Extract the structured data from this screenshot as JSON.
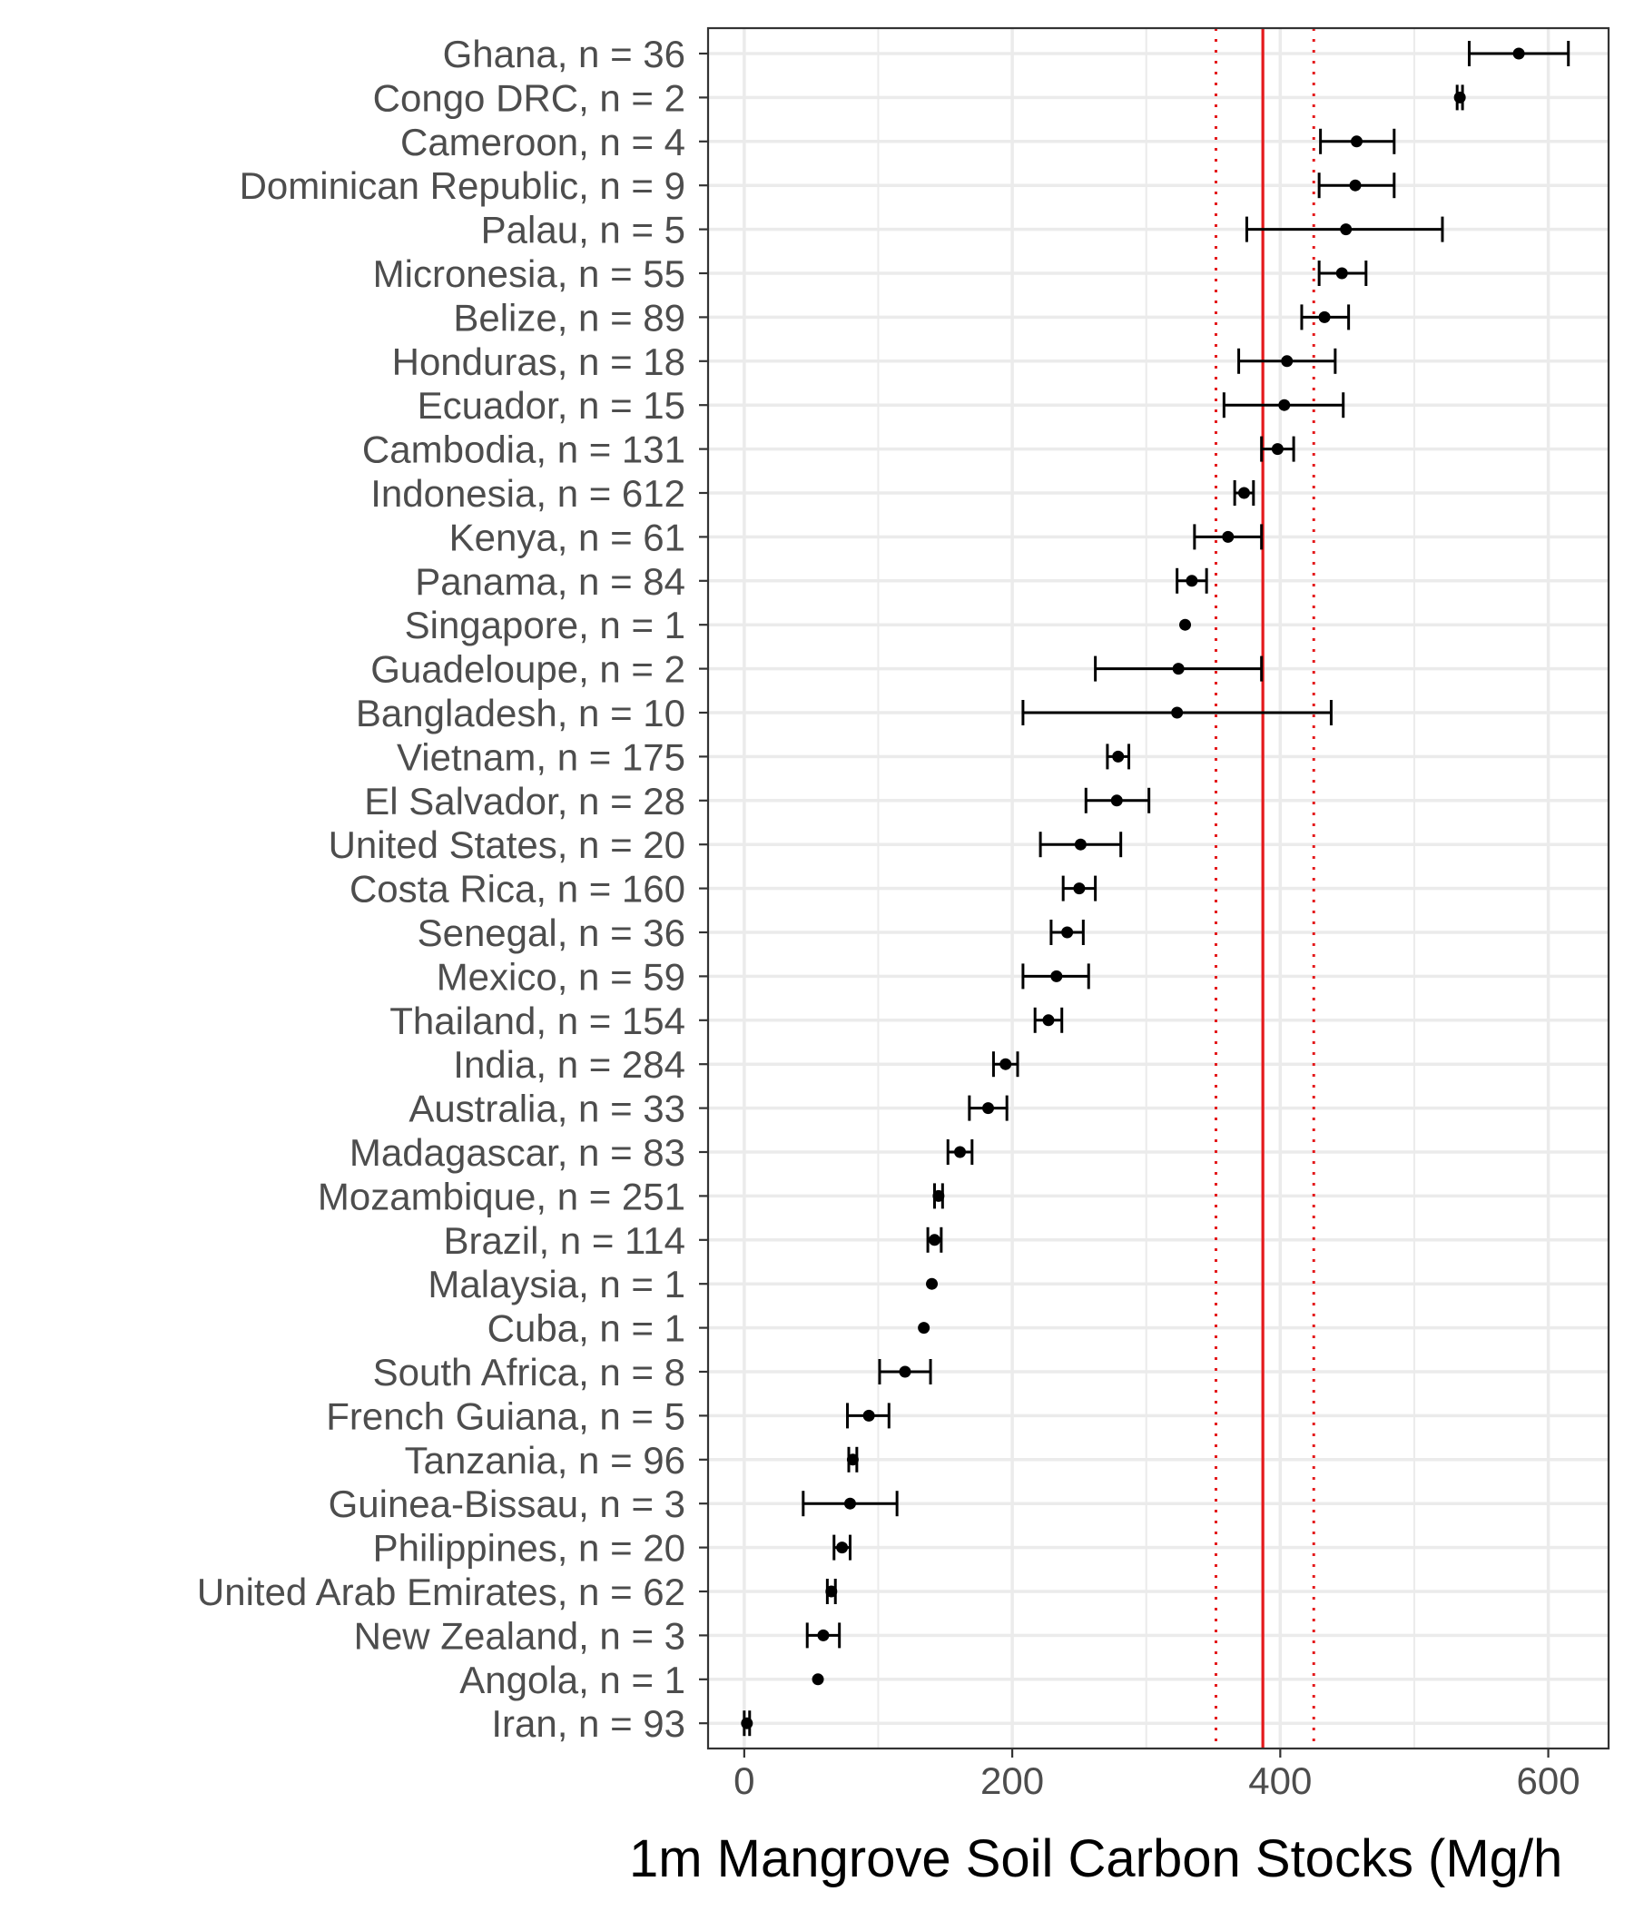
{
  "chart_data": {
    "type": "dot-errorbar",
    "xlabel": "1m Mangrove Soil Carbon Stocks (Mg/h",
    "ylabel": "",
    "xlim": [
      -27,
      645
    ],
    "xticks": [
      0,
      200,
      400,
      600
    ],
    "grid": true,
    "reference_lines": {
      "global_mean": 387,
      "ci_lower": 352,
      "ci_upper": 425,
      "color": "#e41a1c"
    },
    "series": [
      {
        "categories": [
          "Ghana, n = 36",
          "Congo DRC, n = 2",
          "Cameroon, n = 4",
          "Dominican Republic, n = 9",
          "Palau, n = 5",
          "Micronesia, n = 55",
          "Belize, n = 89",
          "Honduras, n = 18",
          "Ecuador, n = 15",
          "Cambodia, n = 131",
          "Indonesia, n = 612",
          "Kenya, n = 61",
          "Panama, n = 84",
          "Singapore, n = 1",
          "Guadeloupe, n = 2",
          "Bangladesh, n = 10",
          "Vietnam, n = 175",
          "El Salvador, n = 28",
          "United States, n = 20",
          "Costa Rica, n = 160",
          "Senegal, n = 36",
          "Mexico, n = 59",
          "Thailand, n = 154",
          "India, n = 284",
          "Australia, n = 33",
          "Madagascar, n = 83",
          "Mozambique, n = 251",
          "Brazil, n = 114",
          "Malaysia, n = 1",
          "Cuba, n = 1",
          "South Africa, n = 8",
          "French Guiana, n = 5",
          "Tanzania, n = 96",
          "Guinea-Bissau, n = 3",
          "Philippines, n = 20",
          "United Arab Emirates, n = 62",
          "New Zealand, n = 3",
          "Angola, n = 1",
          "Iran, n = 93"
        ],
        "mean": [
          578,
          534,
          457,
          456,
          449,
          446,
          433,
          405,
          403,
          398,
          373,
          361,
          334,
          329,
          324,
          323,
          279,
          278,
          251,
          250,
          241,
          233,
          227,
          195,
          182,
          161,
          145,
          142,
          140,
          134,
          120,
          93,
          81,
          79,
          73,
          65,
          59,
          55,
          2
        ],
        "lower": [
          541,
          532,
          430,
          429,
          375,
          429,
          416,
          369,
          358,
          386,
          366,
          336,
          323,
          null,
          262,
          208,
          271,
          255,
          221,
          238,
          229,
          208,
          217,
          186,
          168,
          152,
          142,
          137,
          null,
          null,
          101,
          77,
          78,
          44,
          67,
          62,
          47,
          null,
          0
        ],
        "upper": [
          615,
          536,
          485,
          485,
          521,
          464,
          451,
          441,
          447,
          410,
          380,
          386,
          345,
          null,
          386,
          438,
          287,
          302,
          281,
          262,
          253,
          257,
          237,
          204,
          196,
          170,
          148,
          147,
          null,
          null,
          139,
          108,
          84,
          114,
          79,
          68,
          71,
          null,
          4
        ]
      }
    ]
  }
}
